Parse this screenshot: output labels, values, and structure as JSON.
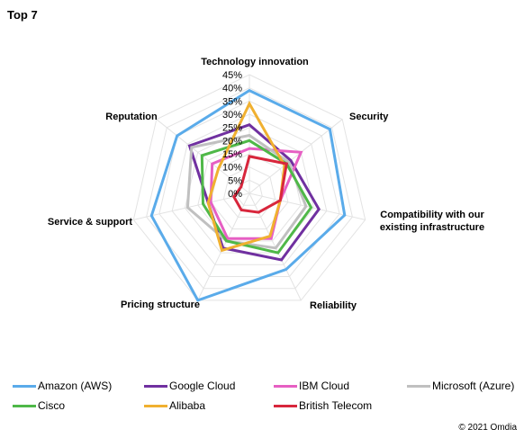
{
  "page": {
    "title": "Top 7",
    "copyright": "© 2021 Omdia"
  },
  "chart_data": {
    "type": "radar",
    "title": "Top 7",
    "axes": [
      "Technology innovation",
      "Security",
      "Compatibility with our existing infrastructure",
      "Reliability",
      "Pricing structure",
      "Service & support",
      "Reputation"
    ],
    "axis_label_lines": [
      [
        "Technology innovation"
      ],
      [
        "Security"
      ],
      [
        "Compatibility with our",
        "existing infrastructure"
      ],
      [
        "Reliability"
      ],
      [
        "Pricing structure"
      ],
      [
        "Service & support"
      ],
      [
        "Reputation"
      ]
    ],
    "ticks": [
      "0%",
      "5%",
      "10%",
      "15%",
      "20%",
      "25%",
      "30%",
      "35%",
      "40%",
      "45%"
    ],
    "range": [
      0,
      45
    ],
    "grid": true,
    "legend_position": "bottom",
    "series": [
      {
        "name": "Amazon (AWS)",
        "color": "#5aabea",
        "values": [
          39,
          39,
          37,
          32,
          45,
          38,
          35
        ]
      },
      {
        "name": "Google Cloud",
        "color": "#7030a0",
        "values": [
          26,
          20,
          27,
          28,
          23,
          16,
          29
        ]
      },
      {
        "name": "IBM Cloud",
        "color": "#e65fc3",
        "values": [
          17,
          25,
          12,
          19,
          19,
          15,
          18
        ]
      },
      {
        "name": "Microsoft (Azure)",
        "color": "#c0c0c0",
        "values": [
          22,
          19,
          22,
          23,
          20,
          24,
          28
        ]
      },
      {
        "name": "Cisco",
        "color": "#4fb848",
        "values": [
          20,
          18,
          24,
          25,
          20,
          18,
          23
        ]
      },
      {
        "name": "Alibaba",
        "color": "#f0b030",
        "values": [
          34,
          17,
          12,
          18,
          24,
          16,
          15
        ]
      },
      {
        "name": "British Telecom",
        "color": "#d8263c",
        "values": [
          14,
          18,
          12,
          8,
          7,
          6,
          4
        ]
      }
    ]
  }
}
